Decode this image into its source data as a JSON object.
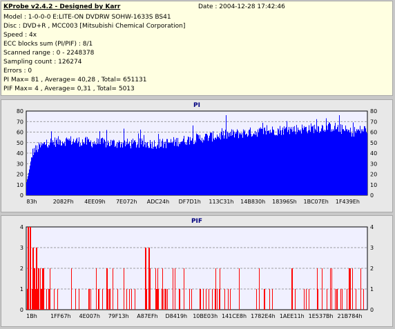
{
  "header": {
    "title": "KProbe v2.4.2 - Designed by Karr",
    "date": "Date : 2004-12-28 17:42:46",
    "lines": [
      "Model : 1-0-0-0 E:LITE-ON DVDRW SOHW-1633S BS41",
      "Disc : DVD+R , MCC003 [Mitsubishi Chemical Corporation]",
      "Speed : 4x",
      "ECC blocks sum (PI/PIF) : 8/1",
      "Scanned range : 0 - 2248378",
      "Sampling count : 126274",
      "Errors : 0",
      "PI Max= 81 , Average= 40,28 , Total= 651131",
      "PIF Max= 4 , Average= 0,31 , Total= 5013"
    ]
  },
  "chart_data": [
    {
      "type": "area",
      "title": "PI",
      "color": "#0000ff",
      "ylim": [
        0,
        80
      ],
      "yticks": [
        0,
        10,
        20,
        30,
        40,
        50,
        60,
        70,
        80
      ],
      "xticks": [
        "83h",
        "2082Fh",
        "4EE09h",
        "7E072h",
        "ADC24h",
        "DF7D1h",
        "113C31h",
        "14B830h",
        "18396Sh",
        "1BC07Eh",
        "1F439Eh"
      ],
      "grid": "dashed horizontal",
      "profile": {
        "x": [
          0,
          0.02,
          0.06,
          0.12,
          0.2,
          0.3,
          0.4,
          0.5,
          0.6,
          0.7,
          0.8,
          0.9,
          0.95,
          1.0
        ],
        "y": [
          25,
          42,
          50,
          52,
          50,
          49,
          49,
          54,
          58,
          61,
          63,
          65,
          60,
          63
        ]
      }
    },
    {
      "type": "bar",
      "title": "PIF",
      "color": "#ff0000",
      "ylim": [
        0,
        4
      ],
      "yticks": [
        0,
        1,
        2,
        3,
        4
      ],
      "xticks": [
        "1Bh",
        "1FF67h",
        "4E007h",
        "79F13h",
        "A87EFh",
        "D8419h",
        "10BE03h",
        "141CE8h",
        "1782E4h",
        "1AEE11h",
        "1E537Bh",
        "21B784h"
      ],
      "grid": "dashed horizontal",
      "typical_max": 2,
      "peaks": [
        {
          "x": 0.005,
          "y": 4
        },
        {
          "x": 0.012,
          "y": 4
        },
        {
          "x": 0.02,
          "y": 3
        },
        {
          "x": 0.03,
          "y": 3
        },
        {
          "x": 0.35,
          "y": 3
        },
        {
          "x": 0.36,
          "y": 3
        }
      ]
    }
  ]
}
